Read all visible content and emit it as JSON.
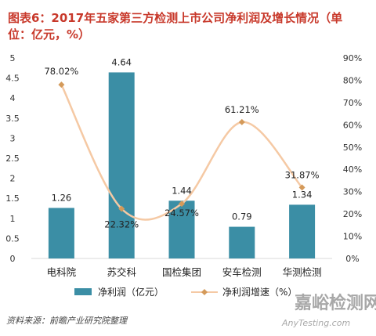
{
  "title_line1": "图表6：2017年五家第三方检测上市公司净利润及增长情况（单",
  "title_line2": "位：亿元，%）",
  "source": "资料来源：前瞻产业研究院整理",
  "watermark": {
    "cn": "嘉峪检测网",
    "en": "AnyTesting.com"
  },
  "colors": {
    "bar": "#3b8ea5",
    "line": "#f5c9a4",
    "marker": "#d49a5a",
    "title": "#c8392b",
    "watermark": "#9a9a9a"
  },
  "chart_data": {
    "type": "bar",
    "categories": [
      "电科院",
      "苏交科",
      "国检集团",
      "安车检测",
      "华测检测"
    ],
    "series": [
      {
        "name": "净利润（亿元）",
        "type": "bar",
        "axis": "left",
        "values": [
          1.26,
          4.64,
          1.44,
          0.79,
          1.34
        ],
        "labels": [
          "1.26",
          "4.64",
          "1.44",
          "0.79",
          "1.34"
        ]
      },
      {
        "name": "净利润增速（%）",
        "type": "line",
        "axis": "right",
        "values": [
          78.02,
          22.32,
          24.57,
          61.21,
          31.87
        ],
        "labels": [
          "78.02%",
          "22.32%",
          "24.57%",
          "61.21%",
          "31.87%"
        ]
      }
    ],
    "left_axis": {
      "min": 0,
      "max": 5,
      "ticks": [
        "0",
        "0.5",
        "1",
        "1.5",
        "2",
        "2.5",
        "3",
        "3.5",
        "4",
        "4.5",
        "5"
      ]
    },
    "right_axis": {
      "min": 0,
      "max": 90,
      "ticks": [
        "0%",
        "10%",
        "20%",
        "30%",
        "40%",
        "50%",
        "60%",
        "70%",
        "80%",
        "90%"
      ]
    },
    "legend_position": "bottom",
    "grid": false
  }
}
